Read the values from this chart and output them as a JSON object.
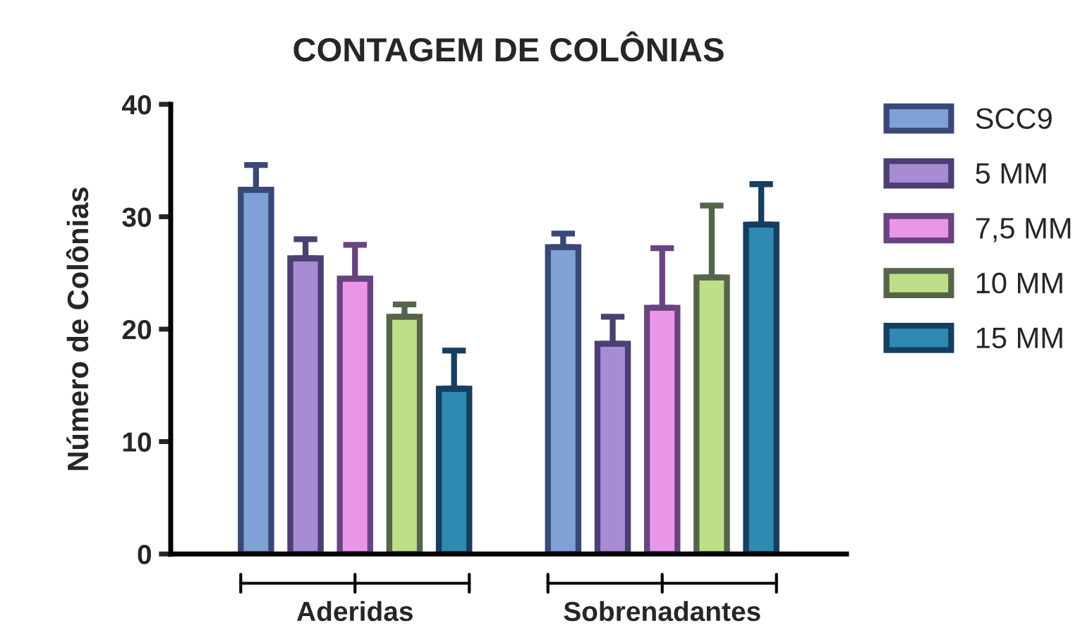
{
  "chart_data": {
    "type": "bar",
    "title": "CONTAGEM DE COLÔNIAS",
    "ylabel": "Número de Colônias",
    "categories": [
      "Aderidas",
      "Sobrenadantes"
    ],
    "series": [
      {
        "name": "SCC9",
        "color": "#7ea1d6",
        "values": [
          32.4,
          27.3
        ],
        "errors": [
          [
            32.4,
            34.6
          ],
          [
            27.3,
            28.5
          ]
        ]
      },
      {
        "name": "5 MM",
        "color": "#a78bd3",
        "values": [
          26.3,
          18.7
        ],
        "errors": [
          [
            26.3,
            28.0
          ],
          [
            18.7,
            21.1
          ]
        ]
      },
      {
        "name": "7,5 MM",
        "color": "#e996e9",
        "values": [
          24.5,
          21.9
        ],
        "errors": [
          [
            24.5,
            27.5
          ],
          [
            21.9,
            27.2
          ]
        ]
      },
      {
        "name": "10 MM",
        "color": "#bddf87",
        "values": [
          21.1,
          24.6
        ],
        "errors": [
          [
            21.1,
            22.2
          ],
          [
            24.6,
            31.0
          ]
        ]
      },
      {
        "name": "15 MM",
        "color": "#2e8ab0",
        "values": [
          14.7,
          29.3
        ],
        "errors": [
          [
            14.7,
            18.1
          ],
          [
            29.3,
            32.9
          ]
        ]
      }
    ],
    "ylim": [
      0,
      40
    ],
    "yticks": [
      0,
      10,
      20,
      30,
      40
    ],
    "grid": false,
    "legend": "right"
  }
}
